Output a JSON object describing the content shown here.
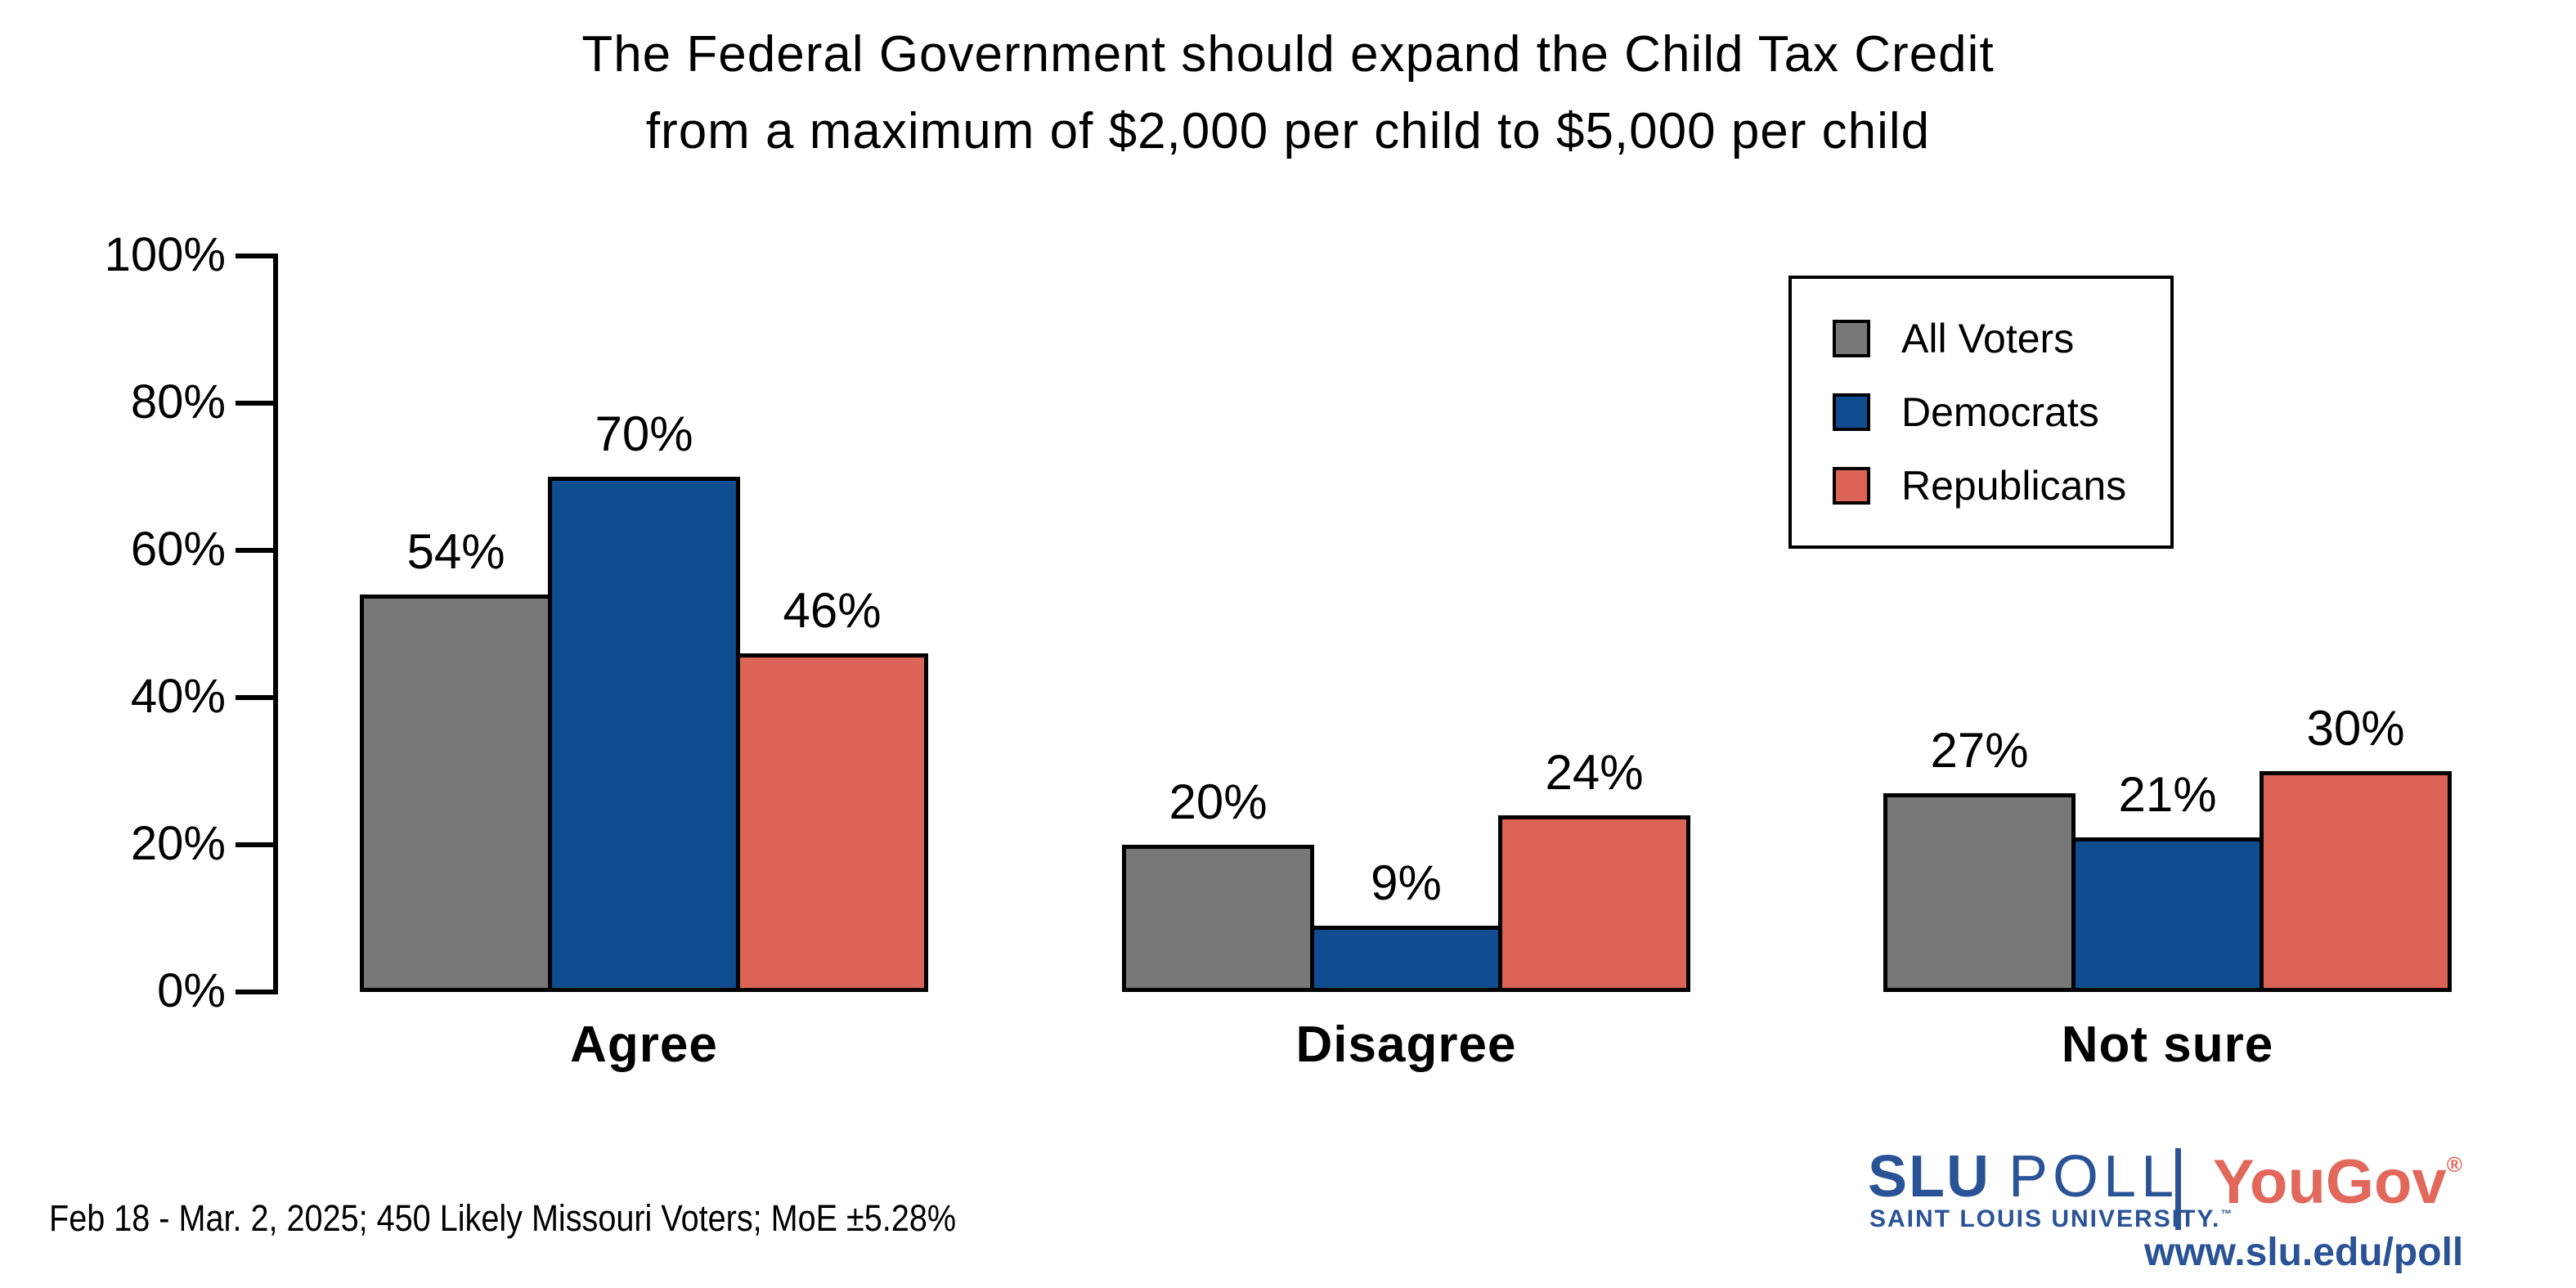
{
  "title": {
    "line1": "The Federal Government should expand the Child Tax Credit",
    "line2": "from a maximum of $2,000 per child to $5,000 per child"
  },
  "chart_data": {
    "type": "bar",
    "categories": [
      "Agree",
      "Disagree",
      "Not sure"
    ],
    "series": [
      {
        "name": "All Voters",
        "color": "#787878",
        "values": [
          54,
          20,
          27
        ]
      },
      {
        "name": "Democrats",
        "color": "#0F4D90",
        "values": [
          70,
          9,
          21
        ]
      },
      {
        "name": "Republicans",
        "color": "#DB6456",
        "values": [
          46,
          24,
          30
        ]
      }
    ],
    "value_suffix": "%",
    "ylim": [
      0,
      100
    ],
    "yticks": [
      "0%",
      "20%",
      "40%",
      "60%",
      "80%",
      "100%"
    ],
    "grid": false,
    "legend_position": "top-right",
    "bar_outline_color": "#000000"
  },
  "legend": {
    "items": [
      {
        "label": "All Voters",
        "color": "#787878"
      },
      {
        "label": "Democrats",
        "color": "#0F4D90"
      },
      {
        "label": "Republicans",
        "color": "#DB6456"
      }
    ]
  },
  "footer": {
    "note": "Feb 18 - Mar. 2, 2025; 450 Likely Missouri Voters; MoE ±5.28%"
  },
  "branding": {
    "slu": "SLU",
    "poll": "POLL",
    "slu_sub": "SAINT LOUIS UNIVERSITY.",
    "tm": "™",
    "yougov": "YouGov",
    "registered": "®",
    "url": "www.slu.edu/poll",
    "slu_blue": "#2A5397",
    "yougov_red": "#E2685C"
  }
}
